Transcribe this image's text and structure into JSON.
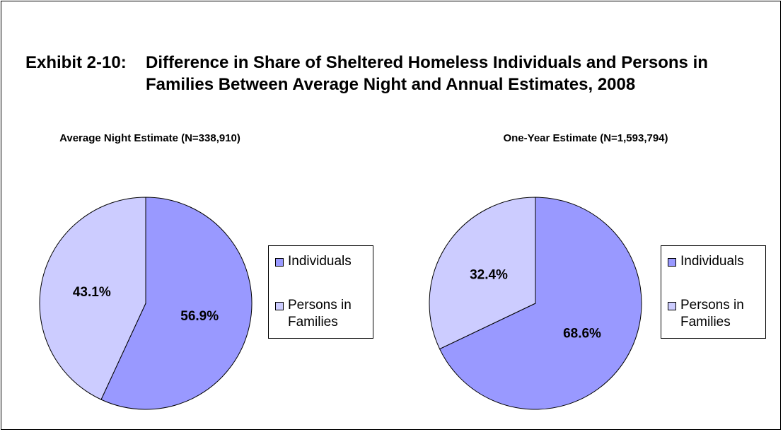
{
  "title": {
    "number": "Exhibit 2-10:",
    "text": "Difference in Share of Sheltered Homeless Individuals and Persons in Families Between Average Night and Annual Estimates, 2008"
  },
  "colors": {
    "individuals": "#9999ff",
    "persons_in_families": "#ccccff",
    "border": "#000000"
  },
  "chart_data": [
    {
      "type": "pie",
      "title": "Average Night Estimate (N=338,910)",
      "categories": [
        "Individuals",
        "Persons in Families"
      ],
      "values": [
        56.9,
        43.1
      ],
      "data_labels": [
        "56.9%",
        "43.1%"
      ],
      "legend": [
        "Individuals",
        "Persons in Families"
      ],
      "legend_position": "right"
    },
    {
      "type": "pie",
      "title": "One-Year Estimate (N=1,593,794)",
      "categories": [
        "Individuals",
        "Persons in Families"
      ],
      "values": [
        68.6,
        32.4
      ],
      "data_labels": [
        "68.6%",
        "32.4%"
      ],
      "legend": [
        "Individuals",
        "Persons in Families"
      ],
      "legend_position": "right"
    }
  ]
}
